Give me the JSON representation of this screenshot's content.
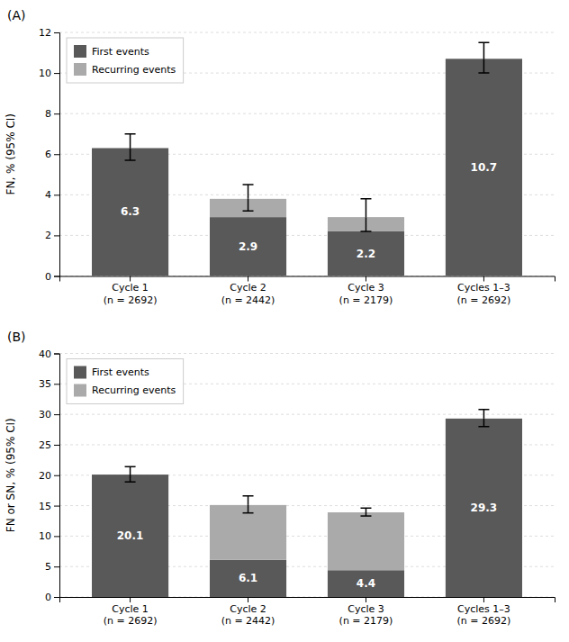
{
  "chart_data": [
    {
      "type": "bar",
      "stacked": true,
      "title": "(A)",
      "ylabel": "FN, % (95% CI)",
      "categories": [
        "Cycle 1\n(n = 2692)",
        "Cycle 2\n(n = 2442)",
        "Cycle 3\n(n = 2179)",
        "Cycles 1–3\n(n = 2692)"
      ],
      "series": [
        {
          "name": "First events",
          "color": "#595959",
          "values": [
            6.3,
            2.9,
            2.2,
            10.7
          ],
          "data_labels": true
        },
        {
          "name": "Recurring events",
          "color": "#aaaaaa",
          "values": [
            0.0,
            0.9,
            0.7,
            0.0
          ]
        }
      ],
      "error_up": [
        0.7,
        0.7,
        0.9,
        0.8
      ],
      "error_down": [
        0.6,
        0.6,
        0.7,
        0.7
      ],
      "ylim": [
        0,
        12
      ],
      "yticks": [
        0,
        2,
        4,
        6,
        8,
        10,
        12
      ],
      "grid": true,
      "legend": "upper left"
    },
    {
      "type": "bar",
      "stacked": true,
      "title": "(B)",
      "ylabel": "FN or SN, % (95% CI)",
      "categories": [
        "Cycle 1\n(n = 2692)",
        "Cycle 2\n(n = 2442)",
        "Cycle 3\n(n = 2179)",
        "Cycles 1–3\n(n = 2692)"
      ],
      "series": [
        {
          "name": "First events",
          "color": "#595959",
          "values": [
            20.1,
            6.1,
            4.4,
            29.3
          ],
          "data_labels": true
        },
        {
          "name": "Recurring events",
          "color": "#aaaaaa",
          "values": [
            0.0,
            9.0,
            9.5,
            0.0
          ]
        }
      ],
      "error_up": [
        1.3,
        1.5,
        0.7,
        1.5
      ],
      "error_down": [
        1.2,
        1.3,
        0.6,
        1.3
      ],
      "ylim": [
        0,
        40
      ],
      "yticks": [
        0,
        5,
        10,
        15,
        20,
        25,
        30,
        35,
        40
      ],
      "grid": true,
      "legend": "upper left"
    }
  ]
}
